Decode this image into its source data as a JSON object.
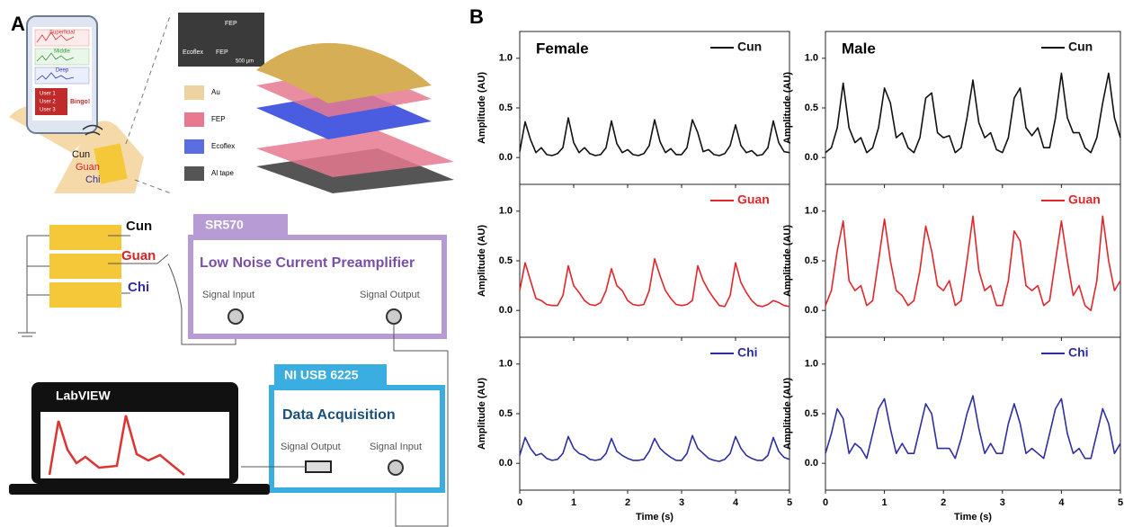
{
  "panel_a": {
    "label": "A",
    "phone": {
      "rows": [
        "Superficial",
        "Middle",
        "Deep"
      ],
      "users": [
        "User 1",
        "User 2",
        "User 3"
      ],
      "badge": "Bingo!"
    },
    "wrist": [
      "Cun",
      "Guan",
      "Chi"
    ],
    "sem": {
      "top": "FEP",
      "left": "Ecoflex",
      "bottom": "FEP",
      "scale": "500 µm"
    },
    "layers": [
      "Au",
      "FEP",
      "Ecoflex",
      "Al tape"
    ],
    "circuit": {
      "channels": [
        "Cun",
        "Guan",
        "Chi"
      ],
      "amp_tag": "SR570",
      "amp_title": "Low Noise Current Preamplifier",
      "amp_in": "Signal Input",
      "amp_out": "Signal Output",
      "software": "LabVIEW",
      "daq_tag": "NI USB 6225",
      "daq_title": "Data Acquisition",
      "daq_out": "Signal Output",
      "daq_in": "Signal Input"
    }
  },
  "panel_b_label": "B",
  "chart_data": [
    {
      "type": "line",
      "title": "Female",
      "xlabel": "Time (s)",
      "ylabel": "Amplitude (AU)",
      "x": [
        0,
        0.1,
        0.2,
        0.3,
        0.4,
        0.5,
        0.6,
        0.7,
        0.8,
        0.9,
        1,
        1.1,
        1.2,
        1.3,
        1.4,
        1.5,
        1.6,
        1.7,
        1.8,
        1.9,
        2,
        2.1,
        2.2,
        2.3,
        2.4,
        2.5,
        2.6,
        2.7,
        2.8,
        2.9,
        3,
        3.1,
        3.2,
        3.3,
        3.4,
        3.5,
        3.6,
        3.7,
        3.8,
        3.9,
        4,
        4.1,
        4.2,
        4.3,
        4.4,
        4.5,
        4.6,
        4.7,
        4.8,
        4.9,
        5
      ],
      "xlim": [
        0,
        5
      ],
      "ylim": [
        -0.27,
        1.27
      ],
      "xticks": [
        0,
        1,
        2,
        3,
        4,
        5
      ],
      "yticks": [
        {
          "value": 0,
          "label": "0.0"
        },
        {
          "value": 0.5,
          "label": "0.5"
        },
        {
          "value": 1,
          "label": "1.0"
        }
      ],
      "series": [
        {
          "name": "Cun",
          "color": "#111111",
          "values": [
            0.06,
            0.36,
            0.18,
            0.05,
            0.1,
            0.03,
            0.02,
            0.04,
            0.1,
            0.4,
            0.15,
            0.05,
            0.1,
            0.04,
            0.02,
            0.03,
            0.1,
            0.37,
            0.14,
            0.05,
            0.08,
            0.03,
            0.02,
            0.04,
            0.12,
            0.38,
            0.16,
            0.05,
            0.09,
            0.03,
            0.03,
            0.1,
            0.38,
            0.25,
            0.06,
            0.08,
            0.03,
            0.02,
            0.04,
            0.12,
            0.33,
            0.12,
            0.05,
            0.07,
            0.02,
            0.03,
            0.1,
            0.37,
            0.15,
            0.06,
            0.05
          ]
        },
        {
          "name": "Guan",
          "color": "#e0262b",
          "values": [
            0.2,
            0.48,
            0.3,
            0.12,
            0.1,
            0.06,
            0.05,
            0.05,
            0.15,
            0.45,
            0.25,
            0.18,
            0.1,
            0.06,
            0.05,
            0.08,
            0.2,
            0.42,
            0.25,
            0.2,
            0.1,
            0.06,
            0.05,
            0.06,
            0.2,
            0.52,
            0.35,
            0.2,
            0.12,
            0.06,
            0.05,
            0.06,
            0.1,
            0.45,
            0.3,
            0.2,
            0.12,
            0.05,
            0.04,
            0.15,
            0.48,
            0.28,
            0.18,
            0.1,
            0.05,
            0.04,
            0.06,
            0.1,
            0.08,
            0.05,
            0.04
          ]
        },
        {
          "name": "Chi",
          "color": "#2e2e9e",
          "values": [
            0.08,
            0.26,
            0.15,
            0.08,
            0.1,
            0.05,
            0.03,
            0.04,
            0.1,
            0.27,
            0.15,
            0.1,
            0.08,
            0.04,
            0.03,
            0.04,
            0.1,
            0.25,
            0.12,
            0.08,
            0.05,
            0.03,
            0.03,
            0.04,
            0.12,
            0.25,
            0.15,
            0.1,
            0.06,
            0.03,
            0.03,
            0.1,
            0.28,
            0.15,
            0.1,
            0.05,
            0.03,
            0.02,
            0.04,
            0.1,
            0.27,
            0.15,
            0.08,
            0.05,
            0.03,
            0.03,
            0.08,
            0.26,
            0.12,
            0.06,
            0.04
          ]
        }
      ]
    },
    {
      "type": "line",
      "title": "Male",
      "xlabel": "Time (s)",
      "ylabel": "Amplitude (AU)",
      "x": [
        0,
        0.1,
        0.2,
        0.3,
        0.4,
        0.5,
        0.6,
        0.7,
        0.8,
        0.9,
        1,
        1.1,
        1.2,
        1.3,
        1.4,
        1.5,
        1.6,
        1.7,
        1.8,
        1.9,
        2,
        2.1,
        2.2,
        2.3,
        2.4,
        2.5,
        2.6,
        2.7,
        2.8,
        2.9,
        3,
        3.1,
        3.2,
        3.3,
        3.4,
        3.5,
        3.6,
        3.7,
        3.8,
        3.9,
        4,
        4.1,
        4.2,
        4.3,
        4.4,
        4.5,
        4.6,
        4.7,
        4.8,
        4.9,
        5
      ],
      "xlim": [
        0,
        5
      ],
      "ylim": [
        -0.27,
        1.27
      ],
      "xticks": [
        0,
        1,
        2,
        3,
        4,
        5
      ],
      "yticks": [
        {
          "value": 0,
          "label": "0.0"
        },
        {
          "value": 0.5,
          "label": "0.5"
        },
        {
          "value": 1,
          "label": "1.0"
        }
      ],
      "series": [
        {
          "name": "Cun",
          "color": "#111111",
          "values": [
            0.05,
            0.1,
            0.3,
            0.75,
            0.3,
            0.15,
            0.2,
            0.05,
            0.1,
            0.3,
            0.7,
            0.55,
            0.2,
            0.25,
            0.1,
            0.05,
            0.2,
            0.6,
            0.65,
            0.25,
            0.2,
            0.22,
            0.05,
            0.1,
            0.4,
            0.78,
            0.35,
            0.2,
            0.25,
            0.08,
            0.05,
            0.2,
            0.6,
            0.7,
            0.3,
            0.22,
            0.3,
            0.1,
            0.1,
            0.4,
            0.85,
            0.4,
            0.25,
            0.25,
            0.1,
            0.05,
            0.2,
            0.55,
            0.85,
            0.4,
            0.2
          ]
        },
        {
          "name": "Guan",
          "color": "#e0262b",
          "values": [
            0.05,
            0.2,
            0.6,
            0.9,
            0.3,
            0.2,
            0.25,
            0.05,
            0.1,
            0.5,
            0.92,
            0.5,
            0.2,
            0.15,
            0.05,
            0.1,
            0.4,
            0.85,
            0.6,
            0.25,
            0.2,
            0.3,
            0.05,
            0.1,
            0.5,
            0.95,
            0.4,
            0.2,
            0.25,
            0.05,
            0.05,
            0.3,
            0.8,
            0.7,
            0.25,
            0.2,
            0.25,
            0.05,
            0.1,
            0.5,
            0.9,
            0.5,
            0.15,
            0.25,
            0.05,
            0.0,
            0.3,
            0.95,
            0.5,
            0.2,
            0.3
          ]
        },
        {
          "name": "Chi",
          "color": "#2e2e9e",
          "values": [
            0.1,
            0.3,
            0.55,
            0.45,
            0.1,
            0.2,
            0.15,
            0.05,
            0.3,
            0.55,
            0.65,
            0.35,
            0.1,
            0.2,
            0.1,
            0.1,
            0.35,
            0.6,
            0.5,
            0.15,
            0.15,
            0.15,
            0.05,
            0.25,
            0.5,
            0.68,
            0.35,
            0.1,
            0.2,
            0.1,
            0.1,
            0.4,
            0.6,
            0.4,
            0.1,
            0.15,
            0.1,
            0.05,
            0.3,
            0.55,
            0.65,
            0.3,
            0.1,
            0.15,
            0.05,
            0.05,
            0.3,
            0.55,
            0.4,
            0.1,
            0.2
          ]
        }
      ]
    }
  ]
}
